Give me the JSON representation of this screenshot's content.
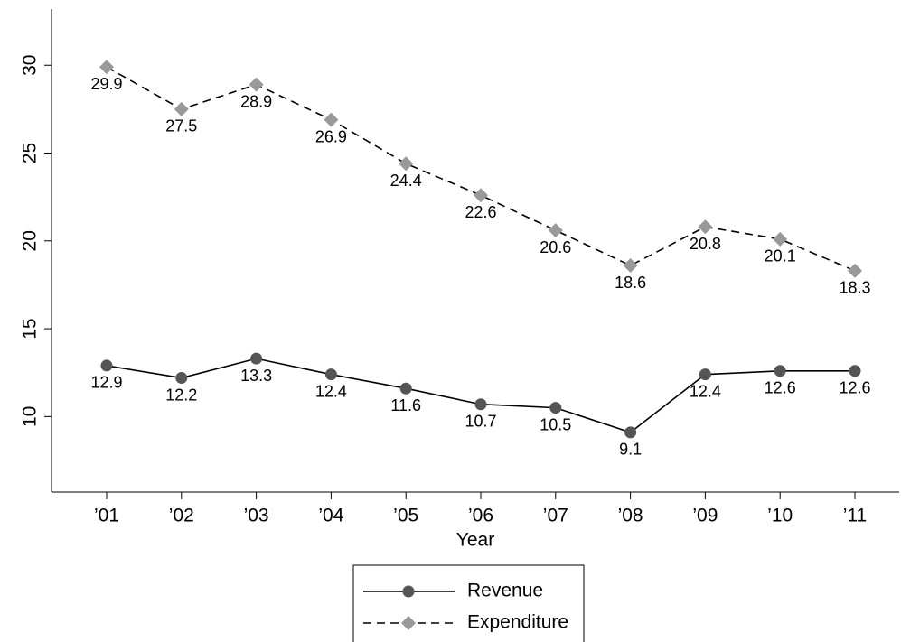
{
  "chart_data": {
    "type": "line",
    "x_label": "Year",
    "categories": [
      "’01",
      "’02",
      "’03",
      "’04",
      "’05",
      "’06",
      "’07",
      "’08",
      "’09",
      "’10",
      "’11"
    ],
    "series": [
      {
        "name": "Revenue",
        "color": "#555555",
        "marker": "circle",
        "dash": false,
        "values": [
          12.9,
          12.2,
          13.3,
          12.4,
          11.6,
          10.7,
          10.5,
          9.1,
          12.4,
          12.6,
          12.6
        ]
      },
      {
        "name": "Expenditure",
        "color": "#999999",
        "marker": "diamond",
        "dash": true,
        "values": [
          29.9,
          27.5,
          28.9,
          26.9,
          24.4,
          22.6,
          20.6,
          18.6,
          20.8,
          20.1,
          18.3
        ]
      }
    ],
    "ylim": [
      5.7,
      33.2
    ],
    "yticks": [
      10,
      15,
      20,
      25,
      30
    ],
    "grid": false
  }
}
